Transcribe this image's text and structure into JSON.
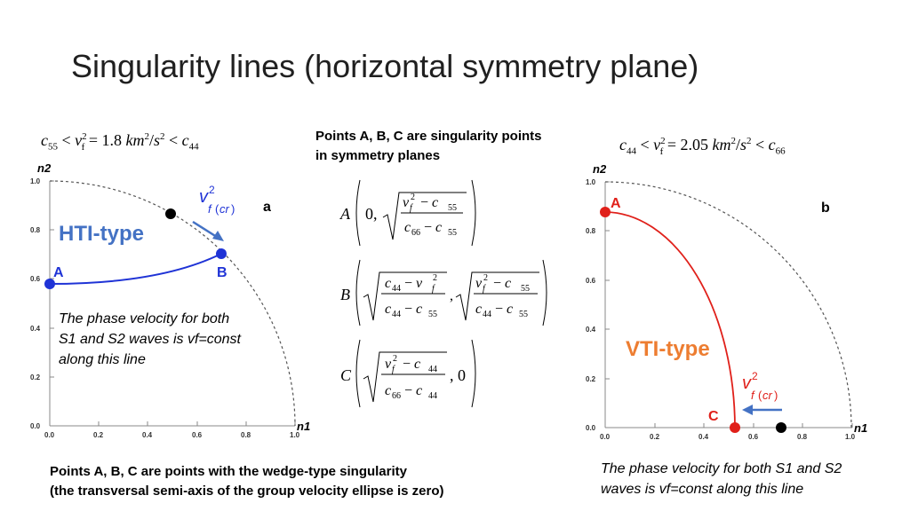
{
  "title": "Singularity lines (horizontal symmetry plane)",
  "left_condition": "c55 < v²f = 1.8 km²/s² < c44",
  "right_condition": "c44 < v²f = 2.05 km²/s² < c66",
  "center_note": [
    "Points A, B, C are singularity points",
    "in symmetry planes"
  ],
  "formulas": {
    "A": "A (0, √((v²f − c55)/(c66 − c55)))",
    "B": "B (√((c44 − v²f)/(c44 − c55)), √((v²f − c55)/(c44 − c55)))",
    "C": "C (√((v²f − c44)/(c66 − c44)), 0)"
  },
  "left_plot": {
    "panel_letter": "a",
    "type_label": "HTI-type",
    "type_color": "#4472C4",
    "curve_color": "#1f33d6",
    "points": {
      "A": "A",
      "B": "B"
    },
    "critical_label": "v²f(cr)",
    "axis_x": "n1",
    "axis_y": "n2",
    "ticks": [
      "0.0",
      "0.2",
      "0.4",
      "0.6",
      "0.8",
      "1.0"
    ],
    "note": [
      "The phase velocity for both",
      "S1 and S2 waves is vf=const",
      "along this line"
    ]
  },
  "right_plot": {
    "panel_letter": "b",
    "type_label": "VTI-type",
    "type_color": "#ED7D31",
    "curve_color": "#e0201a",
    "points": {
      "A": "A",
      "C": "C"
    },
    "critical_label": "v²f(cr)",
    "axis_x": "n1",
    "axis_y": "n2",
    "ticks": [
      "0.0",
      "0.2",
      "0.4",
      "0.6",
      "0.8",
      "1.0"
    ],
    "note": [
      "The phase velocity for both S1 and S2",
      "waves is vf=const along this line"
    ]
  },
  "bottom_note": [
    "Points A, B, C are points with the wedge-type singularity",
    "(the transversal semi-axis of the group velocity ellipse is zero)"
  ]
}
